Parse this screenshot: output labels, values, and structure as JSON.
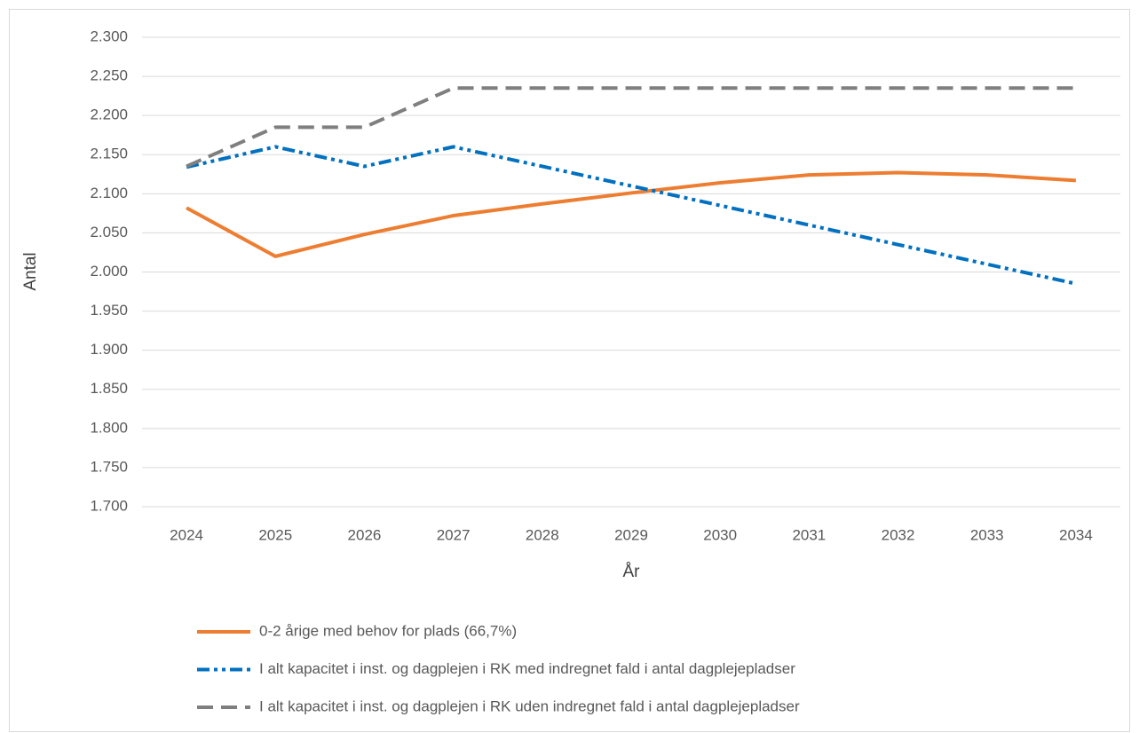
{
  "chart_data": {
    "type": "line",
    "xlabel": "År",
    "ylabel": "Antal",
    "categories": [
      "2024",
      "2025",
      "2026",
      "2027",
      "2028",
      "2029",
      "2030",
      "2031",
      "2032",
      "2033",
      "2034"
    ],
    "series": [
      {
        "name": "0-2 årige med behov for plads (66,7%)",
        "color": "#ed7d31",
        "dash": "solid",
        "values": [
          2082,
          2020,
          2048,
          2072,
          2087,
          2101,
          2114,
          2124,
          2127,
          2124,
          2117
        ]
      },
      {
        "name": "I alt kapacitet i inst. og dagplejen i RK med indregnet fald i antal dagplejepladser",
        "color": "#0070c0",
        "dash": "dash-dot-dot",
        "values": [
          2134,
          2160,
          2135,
          2160,
          2135,
          2110,
          2085,
          2060,
          2035,
          2010,
          1985
        ]
      },
      {
        "name": "I alt kapacitet i inst. og dagplejen i RK uden indregnet fald i antal dagplejepladser",
        "color": "#7f7f7f",
        "dash": "dash",
        "values": [
          2135,
          2185,
          2185,
          2235,
          2235,
          2235,
          2235,
          2235,
          2235,
          2235,
          2235
        ]
      }
    ],
    "ylim": [
      1700,
      2300
    ],
    "yticks": [
      {
        "value": 1700,
        "label": "1.700"
      },
      {
        "value": 1750,
        "label": "1.750"
      },
      {
        "value": 1800,
        "label": "1.800"
      },
      {
        "value": 1850,
        "label": "1.850"
      },
      {
        "value": 1900,
        "label": "1.900"
      },
      {
        "value": 1950,
        "label": "1.950"
      },
      {
        "value": 2000,
        "label": "2.000"
      },
      {
        "value": 2050,
        "label": "2.050"
      },
      {
        "value": 2100,
        "label": "2.100"
      },
      {
        "value": 2150,
        "label": "2.150"
      },
      {
        "value": 2200,
        "label": "2.200"
      },
      {
        "value": 2250,
        "label": "2.250"
      },
      {
        "value": 2300,
        "label": "2.300"
      }
    ],
    "grid": true,
    "legend": "bottom"
  }
}
